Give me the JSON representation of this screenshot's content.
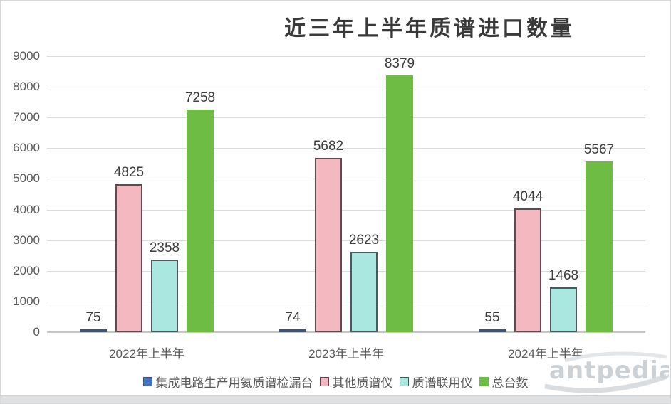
{
  "chart_data": {
    "type": "bar",
    "title": "近三年上半年质谱进口数量",
    "categories": [
      "2022年上半年",
      "2023年上半年",
      "2024年上半年"
    ],
    "series": [
      {
        "name": "集成电路生产用氦质谱检漏台",
        "values": [
          75,
          74,
          55
        ],
        "fill": "#4472C4",
        "border": "#3D5379"
      },
      {
        "name": "其他质谱仪",
        "values": [
          4825,
          5682,
          4044
        ],
        "fill": "#F3B8C0",
        "border": "#5F4B4F"
      },
      {
        "name": "质谱联用仪",
        "values": [
          2358,
          2623,
          1468
        ],
        "fill": "#ABE7E1",
        "border": "#485A5E"
      },
      {
        "name": "总台数",
        "values": [
          7258,
          8379,
          5567
        ],
        "fill": "#6FBC44",
        "border": "#6FBC44"
      }
    ],
    "xlabel": "",
    "ylabel": "",
    "ylim": [
      0,
      9000
    ],
    "yticks": [
      0,
      1000,
      2000,
      3000,
      4000,
      5000,
      6000,
      7000,
      8000,
      9000
    ],
    "grid": true,
    "data_labels": true,
    "legend_position": "bottom"
  },
  "watermark": {
    "text": "antpedia"
  }
}
